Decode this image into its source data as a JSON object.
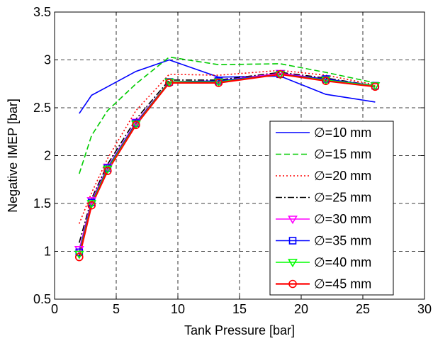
{
  "chart_data": {
    "type": "line",
    "title": "",
    "xlabel": "Tank Pressure [bar]",
    "ylabel": "Negative IMEP [bar]",
    "xlim": [
      0,
      30
    ],
    "ylim": [
      0.5,
      3.5
    ],
    "xticks": [
      0,
      5,
      10,
      15,
      20,
      25,
      30
    ],
    "yticks": [
      0.5,
      1,
      1.5,
      2,
      2.5,
      3,
      3.5
    ],
    "xtick_labels": [
      "0",
      "5",
      "10",
      "15",
      "20",
      "25",
      "30"
    ],
    "ytick_labels": [
      "0.5",
      "1",
      "1.5",
      "2",
      "2.5",
      "3",
      "3.5"
    ],
    "grid": true,
    "grid_style": "dashed",
    "legend_position": "lower-right",
    "series": [
      {
        "name": "∅=10 mm",
        "color": "#0000ff",
        "line": "solid",
        "marker": "none",
        "x": [
          2,
          3,
          4.3,
          6.6,
          9.3,
          13.3,
          18.3,
          22,
          26
        ],
        "y": [
          2.44,
          2.63,
          2.72,
          2.88,
          3.0,
          2.82,
          2.83,
          2.64,
          2.56
        ]
      },
      {
        "name": "∅=15 mm",
        "color": "#00cc00",
        "line": "dashed",
        "marker": "none",
        "x": [
          2,
          3,
          4.3,
          6.6,
          9.3,
          13.3,
          18.3,
          22,
          26
        ],
        "y": [
          1.81,
          2.21,
          2.47,
          2.75,
          3.03,
          2.95,
          2.96,
          2.87,
          2.76
        ]
      },
      {
        "name": "∅=20 mm",
        "color": "#ff0000",
        "line": "dotted",
        "marker": "none",
        "x": [
          2,
          3,
          4.3,
          6.6,
          9.3,
          13.3,
          18.3,
          22,
          26
        ],
        "y": [
          1.29,
          1.61,
          1.97,
          2.47,
          2.85,
          2.84,
          2.89,
          2.84,
          2.74
        ]
      },
      {
        "name": "∅=25 mm",
        "color": "#000000",
        "line": "dashdot",
        "marker": "none",
        "x": [
          2,
          3,
          4.3,
          6.6,
          9.3,
          13.3,
          18.3,
          22,
          26
        ],
        "y": [
          1.09,
          1.55,
          1.91,
          2.38,
          2.79,
          2.79,
          2.87,
          2.81,
          2.73
        ]
      },
      {
        "name": "∅=30 mm",
        "color": "#ff00ff",
        "line": "solid",
        "marker": "triangle-down",
        "x": [
          2,
          3,
          4.3,
          6.6,
          9.3,
          13.3,
          18.3,
          22,
          26
        ],
        "y": [
          1.02,
          1.53,
          1.88,
          2.35,
          2.77,
          2.78,
          2.86,
          2.8,
          2.73
        ]
      },
      {
        "name": "∅=35 mm",
        "color": "#0000ff",
        "line": "solid",
        "marker": "square",
        "x": [
          2,
          3,
          4.3,
          6.6,
          9.3,
          13.3,
          18.3,
          22,
          26
        ],
        "y": [
          0.99,
          1.51,
          1.87,
          2.34,
          2.77,
          2.78,
          2.85,
          2.8,
          2.73
        ]
      },
      {
        "name": "∅=40 mm",
        "color": "#00ff00",
        "line": "solid",
        "marker": "triangle-down",
        "x": [
          2,
          3,
          4.3,
          6.6,
          9.3,
          13.3,
          18.3,
          22,
          26
        ],
        "y": [
          0.97,
          1.5,
          1.86,
          2.33,
          2.77,
          2.77,
          2.85,
          2.79,
          2.73
        ]
      },
      {
        "name": "∅=45 mm",
        "color": "#ff0000",
        "line": "solid",
        "marker": "circle",
        "x": [
          2,
          3,
          4.3,
          6.6,
          9.3,
          13.3,
          18.3,
          22,
          26
        ],
        "y": [
          0.94,
          1.48,
          1.84,
          2.32,
          2.76,
          2.76,
          2.85,
          2.78,
          2.72
        ]
      }
    ]
  }
}
